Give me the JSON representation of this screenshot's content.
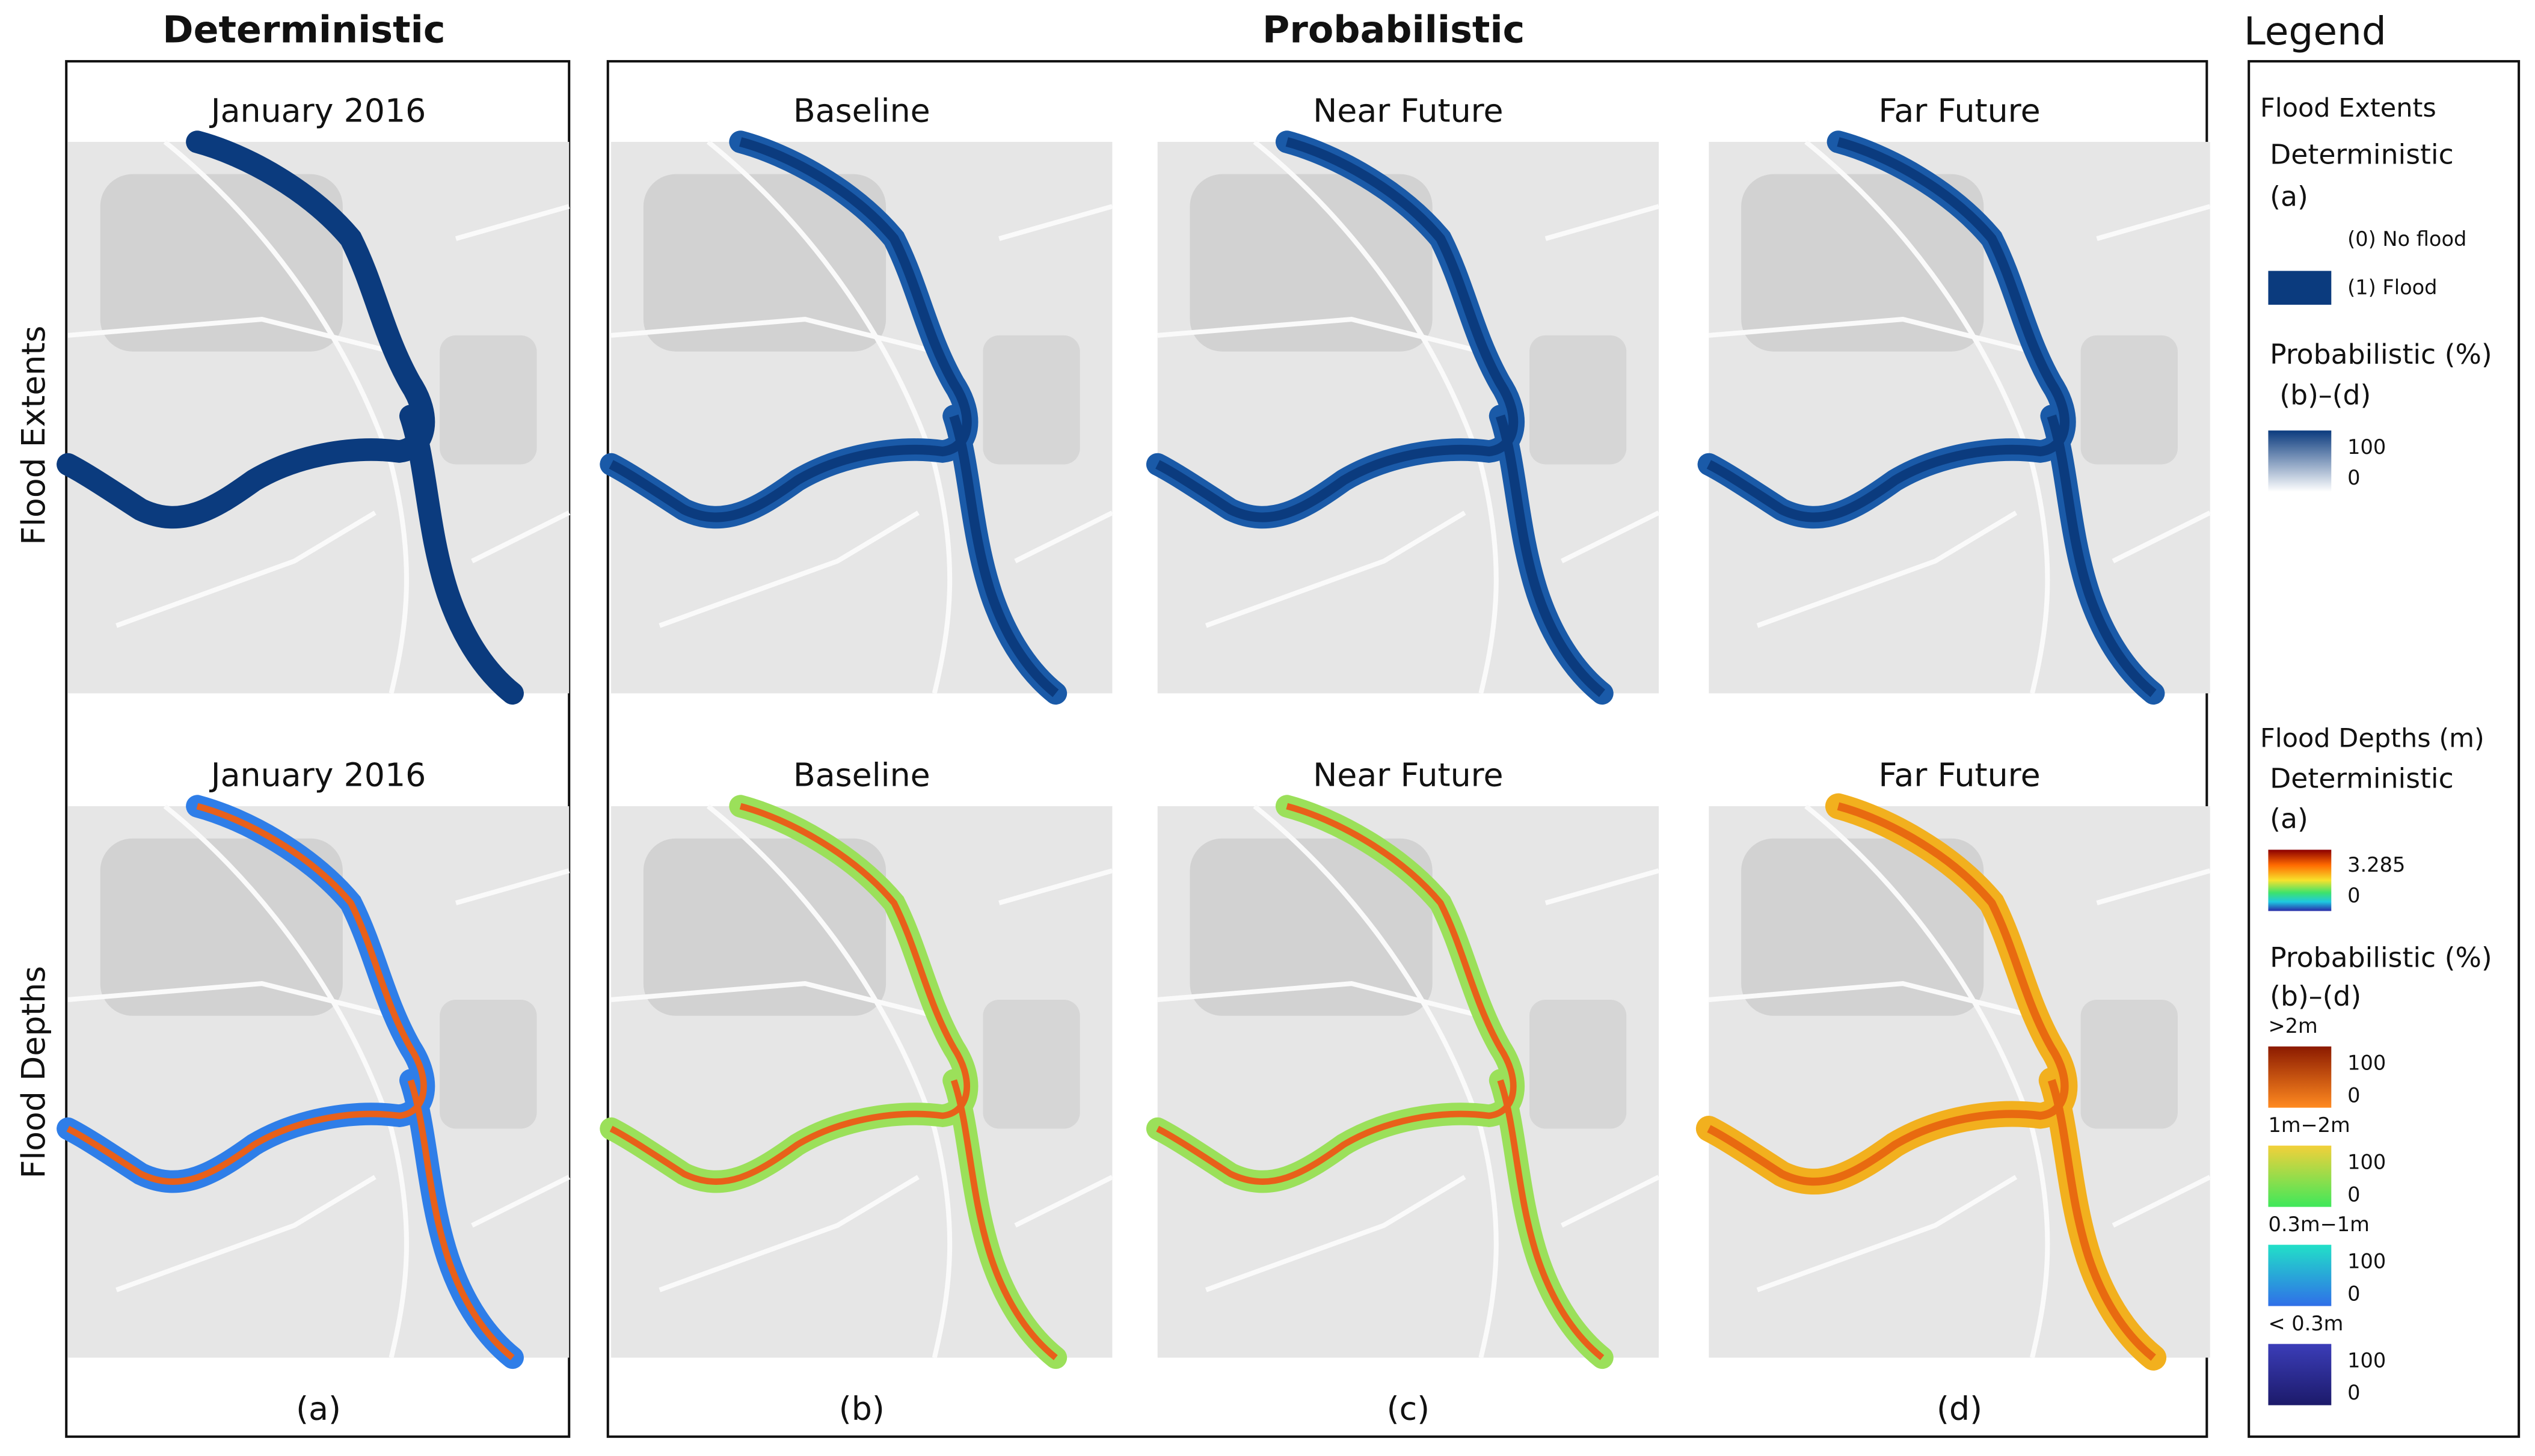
{
  "headers": {
    "deterministic": "Deterministic",
    "probabilistic": "Probabilistic",
    "legend": "Legend"
  },
  "row_labels": [
    "Flood Extents",
    "Flood Depths"
  ],
  "panel_titles": {
    "top": [
      "January 2016",
      "Baseline",
      "Near Future",
      "Far Future"
    ],
    "bottom": [
      "January 2016",
      "Baseline",
      "Near Future",
      "Far Future"
    ]
  },
  "panel_letters": [
    "(a)",
    "(b)",
    "(c)",
    "(d)"
  ],
  "legend": {
    "extents": {
      "title": "Flood Extents",
      "deterministic": "Deterministic",
      "deterministic_panel": "(a)",
      "no_flood": "(0) No flood",
      "flood": "(1) Flood",
      "probabilistic": "Probabilistic (%)",
      "probabilistic_panels": "(b)–(d)",
      "max": "100",
      "min": "0"
    },
    "depths": {
      "title": "Flood Depths (m)",
      "deterministic": "Deterministic",
      "deterministic_panel": "(a)",
      "max": "3.285",
      "min": "0",
      "probabilistic": "Probabilistic (%)",
      "probabilistic_panels": "(b)–(d)",
      "classes": [
        {
          "label": ">2m",
          "max": "100",
          "min": "0"
        },
        {
          "label": "1m−2m",
          "max": "100",
          "min": "0"
        },
        {
          "label": "0.3m−1m",
          "max": "100",
          "min": "0"
        },
        {
          "label": "< 0.3m",
          "max": "100",
          "min": "0"
        }
      ]
    }
  }
}
